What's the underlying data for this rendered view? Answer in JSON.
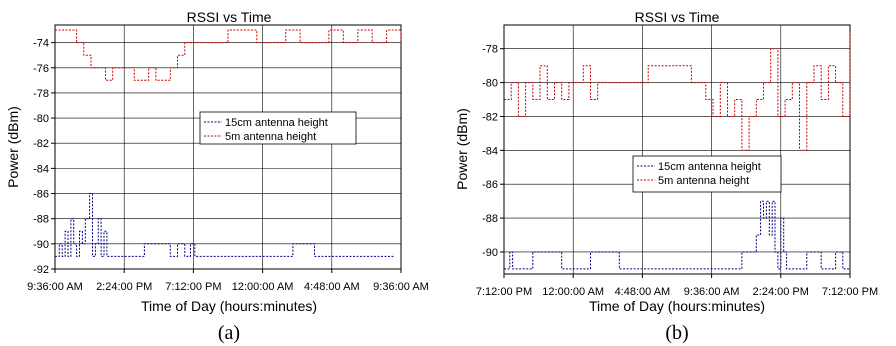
{
  "chart_data": [
    {
      "type": "line",
      "title": "RSSI vs Time",
      "xlabel": "Time of Day (hours:minutes)",
      "ylabel": "Power (dBm)",
      "caption": "(a)",
      "x_tick_labels": [
        "9:36:00 AM",
        "2:24:00 PM",
        "7:12:00 PM",
        "12:00:00 AM",
        "4:48:00 AM",
        "9:36:00 AM"
      ],
      "y_tick_labels": [
        "-74",
        "-76",
        "-78",
        "-80",
        "-82",
        "-84",
        "-86",
        "-88",
        "-90",
        "-92"
      ],
      "xlim": [
        "9:36:00 AM",
        "9:36:00 AM (+1 day)"
      ],
      "ylim": [
        -92,
        -72.6
      ],
      "grid": true,
      "legend_position": "center-right",
      "series": [
        {
          "name": "15cm antenna height",
          "color": "#000080",
          "x_hours": [
            0.0,
            0.3,
            0.5,
            0.7,
            0.9,
            1.1,
            1.3,
            1.5,
            1.7,
            1.9,
            2.1,
            2.4,
            2.6,
            2.8,
            3.0,
            3.2,
            3.4,
            3.6,
            4.0,
            6.0,
            6.2,
            8.0,
            8.5,
            9.0,
            9.4,
            9.7,
            10.0,
            12.0,
            16.0,
            16.5,
            18.0,
            23.5
          ],
          "y": [
            -91,
            -90,
            -91,
            -89,
            -91,
            -88,
            -90,
            -91,
            -89,
            -90,
            -88,
            -86,
            -91,
            -90,
            -88,
            -91,
            -89,
            -91,
            -91,
            -91,
            -90,
            -91,
            -90,
            -91,
            -90,
            -91,
            -91,
            -91,
            -91,
            -90,
            -91,
            -91
          ]
        },
        {
          "name": "5m antenna height",
          "color": "#cc0000",
          "x_hours": [
            0.0,
            1.0,
            1.5,
            2.0,
            2.5,
            3.0,
            3.5,
            4.0,
            4.5,
            5.0,
            5.5,
            6.0,
            6.5,
            7.0,
            7.5,
            8.0,
            8.5,
            9.0,
            9.5,
            10.0,
            12.0,
            14.0,
            15.0,
            16.0,
            17.0,
            18.0,
            19.0,
            20.0,
            21.0,
            22.0,
            23.0,
            24.0
          ],
          "y": [
            -73,
            -73,
            -74,
            -75,
            -76,
            -76,
            -77,
            -76,
            -76,
            -76,
            -77,
            -77,
            -76,
            -77,
            -77,
            -76,
            -75,
            -74,
            -74,
            -74,
            -73,
            -74,
            -74,
            -73,
            -74,
            -74,
            -73,
            -74,
            -73,
            -74,
            -73,
            -74
          ]
        }
      ]
    },
    {
      "type": "line",
      "title": "RSSI vs Time",
      "xlabel": "Time of Day (hours:minutes)",
      "ylabel": "Power (dBm)",
      "caption": "(b)",
      "x_tick_labels": [
        "7:12:00 PM",
        "12:00:00 AM",
        "4:48:00 AM",
        "9:36:00 AM",
        "2:24:00 PM",
        "7:12:00 PM"
      ],
      "y_tick_labels": [
        "-78",
        "-80",
        "-82",
        "-84",
        "-86",
        "-88",
        "-90"
      ],
      "xlim": [
        "7:12:00 PM",
        "7:12:00 PM (+1 day)"
      ],
      "ylim": [
        -91.3,
        -76.6
      ],
      "grid": true,
      "legend_position": "center-left",
      "series": [
        {
          "name": "15cm antenna height",
          "color": "#000080",
          "x_hours": [
            0.0,
            0.4,
            0.6,
            2.0,
            4.0,
            6.0,
            8.0,
            10.0,
            12.0,
            14.0,
            16.0,
            16.5,
            17.2,
            17.5,
            17.8,
            18.0,
            18.2,
            18.4,
            18.6,
            18.8,
            19.0,
            19.2,
            19.4,
            19.6,
            20.0,
            21.0,
            22.0,
            23.0,
            23.5,
            24.0
          ],
          "y": [
            -91,
            -90,
            -91,
            -90,
            -91,
            -90,
            -91,
            -91,
            -91,
            -91,
            -91,
            -90,
            -90,
            -89,
            -87,
            -88,
            -87,
            -89,
            -87,
            -90,
            -91,
            -88,
            -90,
            -91,
            -91,
            -90,
            -91,
            -90,
            -91,
            -91
          ]
        },
        {
          "name": "5m antenna height",
          "color": "#cc0000",
          "x_hours": [
            0.0,
            0.5,
            1.0,
            1.5,
            2.0,
            2.5,
            3.0,
            3.5,
            4.0,
            4.5,
            5.0,
            5.5,
            6.0,
            6.5,
            7.0,
            8.0,
            10.0,
            12.0,
            13.0,
            14.0,
            14.5,
            15.0,
            15.5,
            16.0,
            16.5,
            17.0,
            17.5,
            18.0,
            18.5,
            19.0,
            19.5,
            20.0,
            20.5,
            21.0,
            21.5,
            22.0,
            22.5,
            23.0,
            23.5,
            24.0
          ],
          "y": [
            -81,
            -80,
            -82,
            -80,
            -81,
            -79,
            -81,
            -80,
            -81,
            -80,
            -80,
            -79,
            -81,
            -80,
            -80,
            -80,
            -79,
            -79,
            -80,
            -81,
            -82,
            -80,
            -82,
            -81,
            -84,
            -82,
            -81,
            -80,
            -78,
            -82,
            -81,
            -80,
            -84,
            -80,
            -79,
            -81,
            -79,
            -80,
            -82,
            -77
          ]
        }
      ]
    }
  ]
}
